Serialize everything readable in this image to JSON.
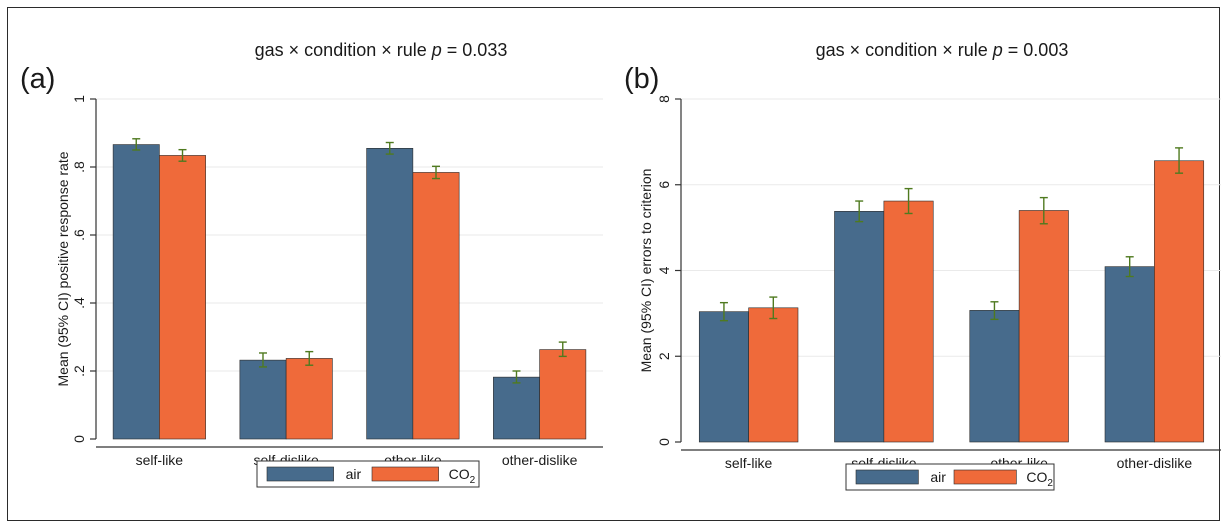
{
  "colors": {
    "air": "#476b8c",
    "co2": "#ef6a3a",
    "error_bar": "#4f7a1f",
    "grid": "#eaeaea"
  },
  "chart_data": [
    {
      "panel": "(a)",
      "type": "bar",
      "title_prefix": "gas × condition × rule ",
      "title_p": "p",
      "title_suffix": " = 0.033",
      "ylabel": "Mean (95% CI) positive response rate",
      "xlabel": "",
      "categories": [
        "self-like",
        "self-dislike",
        "other-like",
        "other-dislike"
      ],
      "ylim": [
        0,
        1
      ],
      "yticks": [
        0,
        0.2,
        0.4,
        0.6,
        0.8,
        1
      ],
      "ytick_labels": [
        "0",
        ".2",
        ".4",
        ".6",
        ".8",
        "1"
      ],
      "series": [
        {
          "name": "air",
          "values": [
            0.866,
            0.232,
            0.855,
            0.182
          ],
          "ci_low": [
            0.85,
            0.212,
            0.838,
            0.165
          ],
          "ci_high": [
            0.883,
            0.253,
            0.872,
            0.2
          ]
        },
        {
          "name": "CO2",
          "values": [
            0.834,
            0.237,
            0.784,
            0.263
          ],
          "ci_low": [
            0.817,
            0.217,
            0.766,
            0.243
          ],
          "ci_high": [
            0.851,
            0.257,
            0.802,
            0.285
          ]
        }
      ],
      "legend": [
        "air",
        "CO2"
      ],
      "legend_position": "bottom"
    },
    {
      "panel": "(b)",
      "type": "bar",
      "title_prefix": "gas × condition × rule ",
      "title_p": "p",
      "title_suffix": " = 0.003",
      "ylabel": "Mean (95% CI) errors to criterion",
      "xlabel": "",
      "categories": [
        "self-like",
        "self-dislike",
        "other-like",
        "other-dislike"
      ],
      "ylim": [
        0,
        8
      ],
      "yticks": [
        0,
        2,
        4,
        6,
        8
      ],
      "ytick_labels": [
        "0",
        "2",
        "4",
        "6",
        "8"
      ],
      "series": [
        {
          "name": "air",
          "values": [
            3.04,
            5.38,
            3.07,
            4.09
          ],
          "ci_low": [
            2.83,
            5.14,
            2.86,
            3.86
          ],
          "ci_high": [
            3.25,
            5.62,
            3.27,
            4.32
          ]
        },
        {
          "name": "CO2",
          "values": [
            3.13,
            5.62,
            5.4,
            6.56
          ],
          "ci_low": [
            2.88,
            5.33,
            5.09,
            6.27
          ],
          "ci_high": [
            3.38,
            5.91,
            5.7,
            6.86
          ]
        }
      ],
      "legend": [
        "air",
        "CO2"
      ],
      "legend_position": "bottom"
    }
  ]
}
